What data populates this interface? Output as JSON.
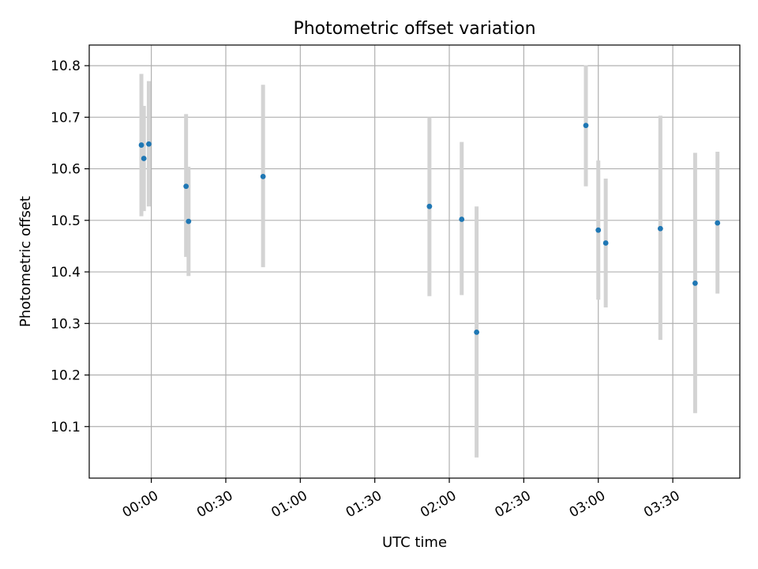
{
  "chart_data": {
    "type": "scatter",
    "title": "Photometric offset variation",
    "xlabel": "UTC time",
    "ylabel": "Photometric offset",
    "xlim_minutes": [
      -25,
      237
    ],
    "ylim": [
      10.0,
      10.84
    ],
    "x_ticks": [
      "00:00",
      "00:30",
      "01:00",
      "01:30",
      "02:00",
      "02:30",
      "03:00",
      "03:30"
    ],
    "y_ticks": [
      "10.1",
      "10.2",
      "10.3",
      "10.4",
      "10.5",
      "10.6",
      "10.7",
      "10.8"
    ],
    "grid": true,
    "marker_color": "#1f77b4",
    "errorbar_color": "#d3d3d3",
    "series": [
      {
        "points": [
          {
            "x": "23:56",
            "y": 10.646,
            "ylow": 10.508,
            "yhigh": 10.784
          },
          {
            "x": "23:57",
            "y": 10.62,
            "ylow": 10.518,
            "yhigh": 10.722
          },
          {
            "x": "23:59",
            "y": 10.648,
            "ylow": 10.527,
            "yhigh": 10.77
          },
          {
            "x": "00:14",
            "y": 10.566,
            "ylow": 10.429,
            "yhigh": 10.706
          },
          {
            "x": "00:15",
            "y": 10.498,
            "ylow": 10.392,
            "yhigh": 10.604
          },
          {
            "x": "00:45",
            "y": 10.585,
            "ylow": 10.409,
            "yhigh": 10.763
          },
          {
            "x": "01:52",
            "y": 10.527,
            "ylow": 10.353,
            "yhigh": 10.7
          },
          {
            "x": "02:05",
            "y": 10.502,
            "ylow": 10.355,
            "yhigh": 10.652
          },
          {
            "x": "02:11",
            "y": 10.283,
            "ylow": 10.04,
            "yhigh": 10.527
          },
          {
            "x": "02:55",
            "y": 10.684,
            "ylow": 10.566,
            "yhigh": 10.801
          },
          {
            "x": "03:00",
            "y": 10.481,
            "ylow": 10.346,
            "yhigh": 10.616
          },
          {
            "x": "03:03",
            "y": 10.456,
            "ylow": 10.331,
            "yhigh": 10.581
          },
          {
            "x": "03:25",
            "y": 10.484,
            "ylow": 10.268,
            "yhigh": 10.703
          },
          {
            "x": "03:39",
            "y": 10.378,
            "ylow": 10.126,
            "yhigh": 10.631
          },
          {
            "x": "03:48",
            "y": 10.495,
            "ylow": 10.358,
            "yhigh": 10.633
          }
        ]
      }
    ]
  }
}
